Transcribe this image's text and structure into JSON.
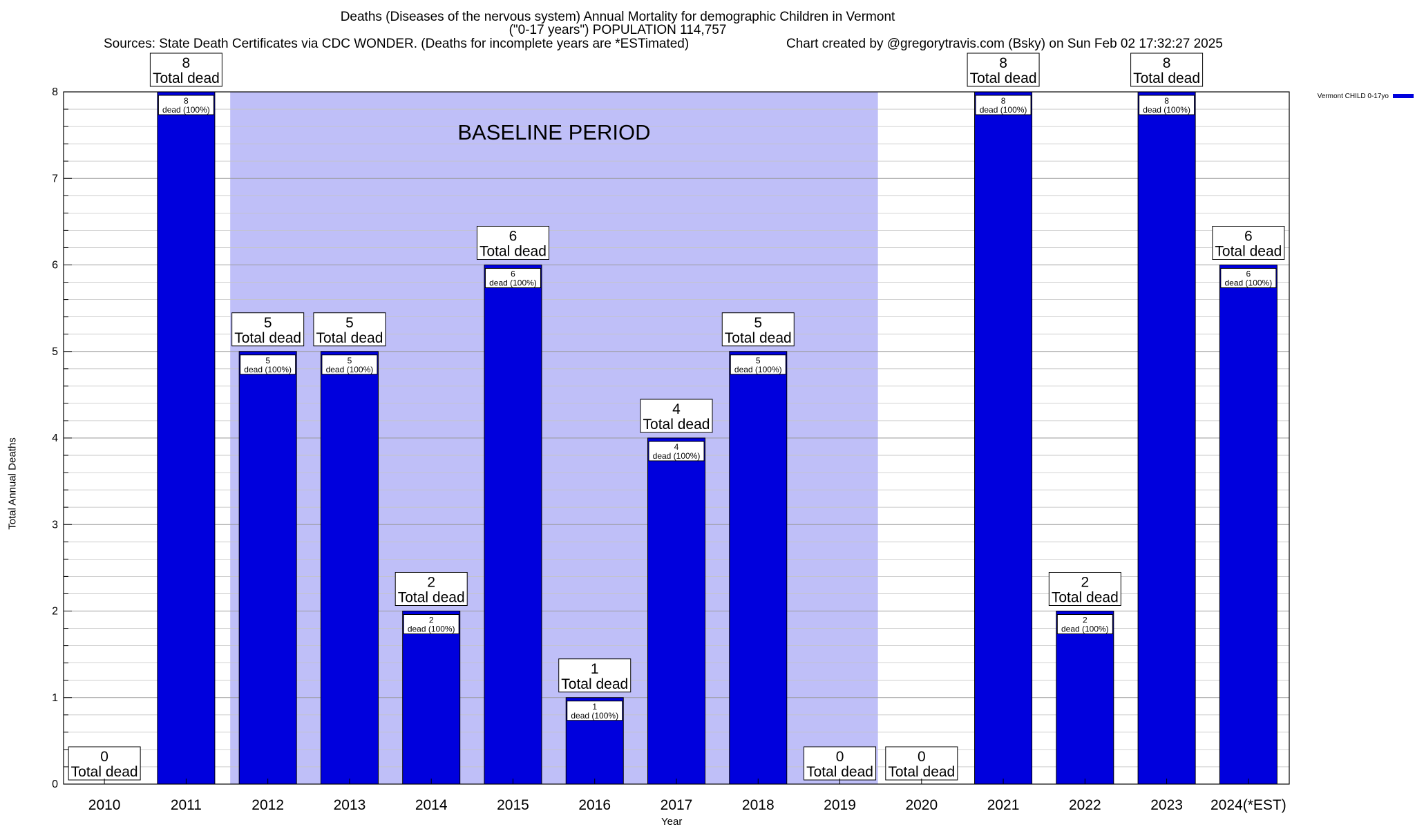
{
  "title": {
    "line1": "Deaths (Diseases of the nervous system) Annual Mortality for demographic Children in Vermont",
    "line2": "(\"0-17 years\") POPULATION 114,757",
    "sources": "Sources: State Death Certificates via CDC WONDER. (Deaths for incomplete years are *ESTimated)",
    "credit": "Chart created by @gregorytravis.com (Bsky) on Sun Feb 02 17:32:27 2025"
  },
  "chart_data": {
    "type": "bar",
    "categories": [
      "2010",
      "2011",
      "2012",
      "2013",
      "2014",
      "2015",
      "2016",
      "2017",
      "2018",
      "2019",
      "2020",
      "2021",
      "2022",
      "2023",
      "2024(*EST)"
    ],
    "series": [
      {
        "name": "Vermont CHILD 0-17yo",
        "values": [
          0,
          8,
          5,
          5,
          2,
          6,
          1,
          4,
          5,
          0,
          0,
          8,
          2,
          8,
          6
        ],
        "color": "#0000dd"
      }
    ],
    "ylabel": "Total Annual Deaths",
    "xlabel": "Year",
    "ylim": [
      0,
      8
    ],
    "yticks": [
      0,
      1,
      2,
      3,
      4,
      5,
      6,
      7,
      8
    ],
    "grid": true,
    "legend": "top-right",
    "baseline_band": {
      "label": "BASELINE PERIOD",
      "from": "2012",
      "to": "2019",
      "color": "#bfbff8"
    },
    "total_label_suffix": "Total dead",
    "inner_label_suffix": "dead (100%)"
  }
}
